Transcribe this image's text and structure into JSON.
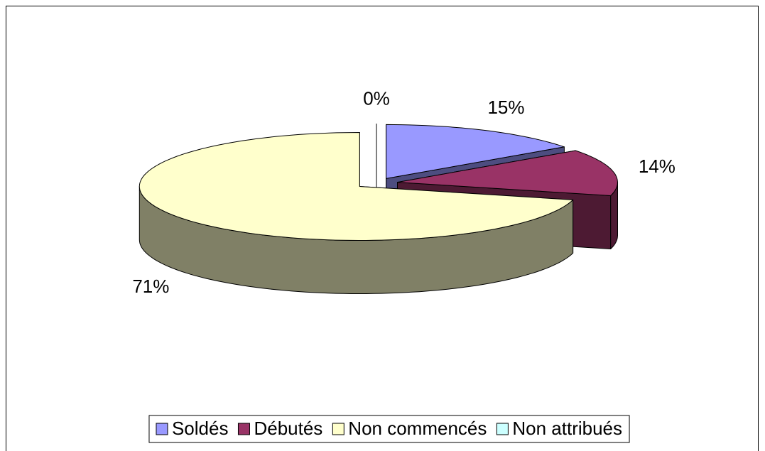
{
  "chart_data": {
    "type": "pie",
    "categories": [
      "Soldés",
      "Débutés",
      "Non commencés",
      "Non attribués"
    ],
    "values": [
      15,
      14,
      71,
      0
    ],
    "value_labels": [
      "15%",
      "14%",
      "71%",
      "0%"
    ],
    "colors": [
      "#9999ff",
      "#993366",
      "#ffffcc",
      "#ccffff"
    ],
    "legend": "bottom"
  }
}
